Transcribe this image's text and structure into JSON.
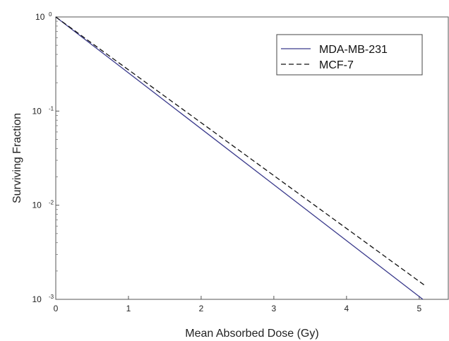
{
  "chart_data": {
    "type": "line",
    "title": "",
    "xlabel": "Mean Absorbed Dose (Gy)",
    "ylabel": "Surviving Fraction",
    "xlim": [
      0,
      5.4
    ],
    "ylim": [
      0.001,
      1
    ],
    "yscale": "log",
    "x_ticks": [
      "0",
      "1",
      "2",
      "3",
      "4",
      "5"
    ],
    "y_ticks": [
      {
        "base": "10",
        "exp": "0"
      },
      {
        "base": "10",
        "exp": "-1"
      },
      {
        "base": "10",
        "exp": "-2"
      },
      {
        "base": "10",
        "exp": "-3"
      }
    ],
    "legend_position": "top-right",
    "series": [
      {
        "name": "MDA-MB-231",
        "color": "#3a3a8c",
        "style": "solid",
        "x": [
          0,
          5.05
        ],
        "y": [
          1,
          0.001
        ]
      },
      {
        "name": "MCF-7",
        "color": "#111111",
        "style": "dashed",
        "x": [
          0,
          5.08
        ],
        "y": [
          1,
          0.0014
        ]
      }
    ]
  }
}
